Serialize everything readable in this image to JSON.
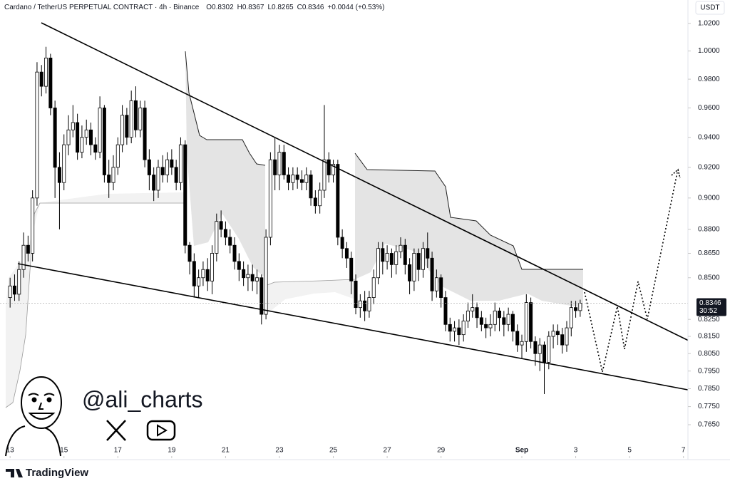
{
  "chart_data": {
    "type": "candlestick",
    "title": "Cardano / TetherUS PERPETUAL CONTRACT · 4h · Binance",
    "ohlc_labels": [
      "O0.8302",
      "H0.8367",
      "L0.8265",
      "C0.8346"
    ],
    "change": "+0.0044 (+0.53%)",
    "currency": "USDT",
    "countdown": "30:52",
    "watermark": "@ali_charts",
    "branding": "TradingView",
    "up_color": "#ffffff",
    "down_color": "#000000",
    "log": true,
    "x": [
      0,
      4,
      8,
      12,
      16,
      20,
      24,
      28,
      32,
      36,
      40,
      44,
      48,
      52,
      56,
      60,
      64,
      68,
      72,
      76,
      80,
      84,
      88,
      92,
      96,
      100,
      104,
      108,
      112,
      116,
      120,
      124,
      128,
      132,
      136,
      140,
      144,
      148,
      152,
      156,
      160,
      164,
      168,
      172,
      176,
      180,
      184,
      188,
      192,
      196,
      200,
      204,
      208,
      212,
      216,
      220,
      224,
      228,
      232,
      236,
      240,
      244,
      248,
      252,
      256,
      260,
      264,
      268,
      272,
      276,
      280,
      284,
      288,
      292,
      296,
      300,
      304,
      308,
      312,
      316,
      320,
      324,
      328,
      332,
      336,
      340,
      344,
      348,
      352,
      356,
      360,
      364,
      368,
      372,
      376,
      380,
      384,
      388,
      392,
      396,
      400,
      404,
      408,
      412,
      416,
      420,
      424,
      428,
      432,
      436,
      440,
      444,
      448,
      452,
      456,
      460,
      464,
      468,
      472,
      476,
      480,
      484,
      488,
      492,
      496,
      500,
      504,
      508
    ],
    "open": [
      0.838,
      0.845,
      0.84,
      0.855,
      0.87,
      0.865,
      0.9,
      0.985,
      0.975,
      0.995,
      0.96,
      0.92,
      0.91,
      0.935,
      0.945,
      0.95,
      0.93,
      0.94,
      0.945,
      0.935,
      0.93,
      0.96,
      0.915,
      0.91,
      0.92,
      0.935,
      0.955,
      0.94,
      0.965,
      0.945,
      0.96,
      0.925,
      0.915,
      0.905,
      0.92,
      0.915,
      0.925,
      0.92,
      0.91,
      0.935,
      0.87,
      0.86,
      0.845,
      0.85,
      0.855,
      0.848,
      0.865,
      0.885,
      0.88,
      0.875,
      0.87,
      0.86,
      0.855,
      0.85,
      0.852,
      0.848,
      0.85,
      0.828,
      0.875,
      0.925,
      0.915,
      0.93,
      0.915,
      0.91,
      0.915,
      0.912,
      0.91,
      0.915,
      0.9,
      0.895,
      0.905,
      0.925,
      0.915,
      0.922,
      0.875,
      0.868,
      0.862,
      0.848,
      0.832,
      0.836,
      0.83,
      0.838,
      0.85,
      0.868,
      0.86,
      0.865,
      0.858,
      0.866,
      0.87,
      0.858,
      0.848,
      0.865,
      0.855,
      0.868,
      0.862,
      0.842,
      0.85,
      0.838,
      0.822,
      0.818,
      0.82,
      0.816,
      0.824,
      0.83,
      0.832,
      0.826,
      0.822,
      0.82,
      0.822,
      0.83,
      0.826,
      0.822,
      0.828,
      0.818,
      0.81,
      0.812,
      0.835,
      0.812,
      0.805,
      0.81,
      0.8,
      0.815,
      0.818,
      0.816,
      0.81,
      0.82,
      0.832,
      0.8302
    ],
    "high": [
      0.85,
      0.852,
      0.86,
      0.878,
      0.876,
      0.905,
      0.992,
      0.99,
      1.003,
      0.998,
      0.965,
      0.93,
      0.942,
      0.955,
      0.962,
      0.956,
      0.948,
      0.952,
      0.95,
      0.94,
      0.968,
      0.962,
      0.925,
      0.928,
      0.94,
      0.962,
      0.96,
      0.972,
      0.975,
      0.965,
      0.965,
      0.932,
      0.92,
      0.925,
      0.928,
      0.93,
      0.932,
      0.925,
      0.94,
      0.938,
      0.872,
      0.865,
      0.855,
      0.86,
      0.862,
      0.87,
      0.89,
      0.892,
      0.885,
      0.88,
      0.875,
      0.865,
      0.86,
      0.858,
      0.858,
      0.855,
      0.852,
      0.88,
      0.93,
      0.94,
      0.935,
      0.935,
      0.92,
      0.92,
      0.92,
      0.918,
      0.92,
      0.918,
      0.905,
      0.91,
      0.962,
      0.93,
      0.925,
      0.925,
      0.88,
      0.872,
      0.866,
      0.852,
      0.84,
      0.842,
      0.842,
      0.855,
      0.872,
      0.872,
      0.87,
      0.868,
      0.87,
      0.875,
      0.874,
      0.862,
      0.868,
      0.868,
      0.872,
      0.878,
      0.866,
      0.855,
      0.852,
      0.842,
      0.826,
      0.824,
      0.825,
      0.828,
      0.835,
      0.84,
      0.835,
      0.83,
      0.826,
      0.828,
      0.835,
      0.832,
      0.83,
      0.832,
      0.83,
      0.822,
      0.816,
      0.84,
      0.838,
      0.815,
      0.814,
      0.812,
      0.818,
      0.822,
      0.822,
      0.82,
      0.824,
      0.836,
      0.836,
      0.8367
    ],
    "low": [
      0.832,
      0.836,
      0.836,
      0.85,
      0.86,
      0.86,
      0.895,
      0.968,
      0.97,
      0.955,
      0.9,
      0.88,
      0.905,
      0.928,
      0.94,
      0.925,
      0.926,
      0.935,
      0.928,
      0.925,
      0.926,
      0.91,
      0.9,
      0.905,
      0.915,
      0.93,
      0.935,
      0.936,
      0.94,
      0.94,
      0.92,
      0.905,
      0.898,
      0.9,
      0.91,
      0.91,
      0.915,
      0.905,
      0.905,
      0.865,
      0.852,
      0.838,
      0.838,
      0.845,
      0.842,
      0.84,
      0.86,
      0.875,
      0.87,
      0.865,
      0.855,
      0.848,
      0.845,
      0.842,
      0.842,
      0.84,
      0.822,
      0.825,
      0.87,
      0.905,
      0.905,
      0.912,
      0.905,
      0.905,
      0.906,
      0.905,
      0.905,
      0.895,
      0.89,
      0.89,
      0.9,
      0.91,
      0.91,
      0.87,
      0.862,
      0.856,
      0.84,
      0.828,
      0.826,
      0.824,
      0.826,
      0.834,
      0.846,
      0.852,
      0.855,
      0.85,
      0.852,
      0.862,
      0.852,
      0.84,
      0.842,
      0.848,
      0.85,
      0.856,
      0.836,
      0.838,
      0.832,
      0.818,
      0.812,
      0.812,
      0.81,
      0.812,
      0.82,
      0.826,
      0.82,
      0.818,
      0.814,
      0.815,
      0.818,
      0.818,
      0.815,
      0.818,
      0.812,
      0.806,
      0.802,
      0.806,
      0.808,
      0.798,
      0.795,
      0.782,
      0.796,
      0.808,
      0.81,
      0.805,
      0.806,
      0.815,
      0.826,
      0.8265
    ],
    "close": [
      0.845,
      0.84,
      0.855,
      0.87,
      0.865,
      0.9,
      0.985,
      0.975,
      0.995,
      0.96,
      0.92,
      0.91,
      0.935,
      0.945,
      0.95,
      0.93,
      0.94,
      0.945,
      0.935,
      0.93,
      0.96,
      0.915,
      0.91,
      0.92,
      0.935,
      0.955,
      0.94,
      0.965,
      0.945,
      0.96,
      0.925,
      0.915,
      0.905,
      0.92,
      0.915,
      0.925,
      0.92,
      0.91,
      0.935,
      0.87,
      0.86,
      0.845,
      0.85,
      0.855,
      0.848,
      0.865,
      0.885,
      0.88,
      0.875,
      0.87,
      0.86,
      0.855,
      0.85,
      0.852,
      0.848,
      0.85,
      0.828,
      0.875,
      0.925,
      0.915,
      0.93,
      0.915,
      0.91,
      0.915,
      0.912,
      0.91,
      0.915,
      0.9,
      0.895,
      0.905,
      0.925,
      0.915,
      0.922,
      0.875,
      0.868,
      0.862,
      0.848,
      0.832,
      0.836,
      0.83,
      0.838,
      0.85,
      0.868,
      0.86,
      0.865,
      0.858,
      0.866,
      0.87,
      0.858,
      0.848,
      0.865,
      0.855,
      0.868,
      0.862,
      0.842,
      0.85,
      0.838,
      0.822,
      0.818,
      0.82,
      0.816,
      0.824,
      0.83,
      0.832,
      0.826,
      0.822,
      0.82,
      0.822,
      0.83,
      0.826,
      0.822,
      0.828,
      0.818,
      0.81,
      0.812,
      0.835,
      0.812,
      0.805,
      0.81,
      0.8,
      0.815,
      0.818,
      0.816,
      0.81,
      0.82,
      0.832,
      0.8302,
      0.8346
    ],
    "xlim": [
      -9,
      604
    ],
    "xticks": [
      {
        "value": 0,
        "label": "13"
      },
      {
        "value": 48,
        "label": "15"
      },
      {
        "value": 96,
        "label": "17"
      },
      {
        "value": 144,
        "label": "19"
      },
      {
        "value": 192,
        "label": "21"
      },
      {
        "value": 240,
        "label": "23"
      },
      {
        "value": 288,
        "label": "25"
      },
      {
        "value": 336,
        "label": "27"
      },
      {
        "value": 384,
        "label": "29"
      },
      {
        "value": 456,
        "label": "Sep"
      },
      {
        "value": 504,
        "label": "3"
      },
      {
        "value": 552,
        "label": "5"
      },
      {
        "value": 600,
        "label": "7"
      }
    ],
    "ylim": [
      0.748,
      1.033
    ],
    "yticks": [
      {
        "value": 1.02,
        "label": "1.0200"
      },
      {
        "value": 1.0,
        "label": "1.0000"
      },
      {
        "value": 0.98,
        "label": "0.9800"
      },
      {
        "value": 0.96,
        "label": "0.9600"
      },
      {
        "value": 0.94,
        "label": "0.9400"
      },
      {
        "value": 0.92,
        "label": "0.9200"
      },
      {
        "value": 0.9,
        "label": "0.9000"
      },
      {
        "value": 0.88,
        "label": "0.8800"
      },
      {
        "value": 0.865,
        "label": "0.8650"
      },
      {
        "value": 0.85,
        "label": "0.8500"
      },
      {
        "value": 0.825,
        "label": "0.8250"
      },
      {
        "value": 0.815,
        "label": "0.8150"
      },
      {
        "value": 0.805,
        "label": "0.8050"
      },
      {
        "value": 0.795,
        "label": "0.7950"
      },
      {
        "value": 0.785,
        "label": "0.7850"
      },
      {
        "value": 0.775,
        "label": "0.7750"
      },
      {
        "value": 0.765,
        "label": "0.7650"
      }
    ]
  }
}
